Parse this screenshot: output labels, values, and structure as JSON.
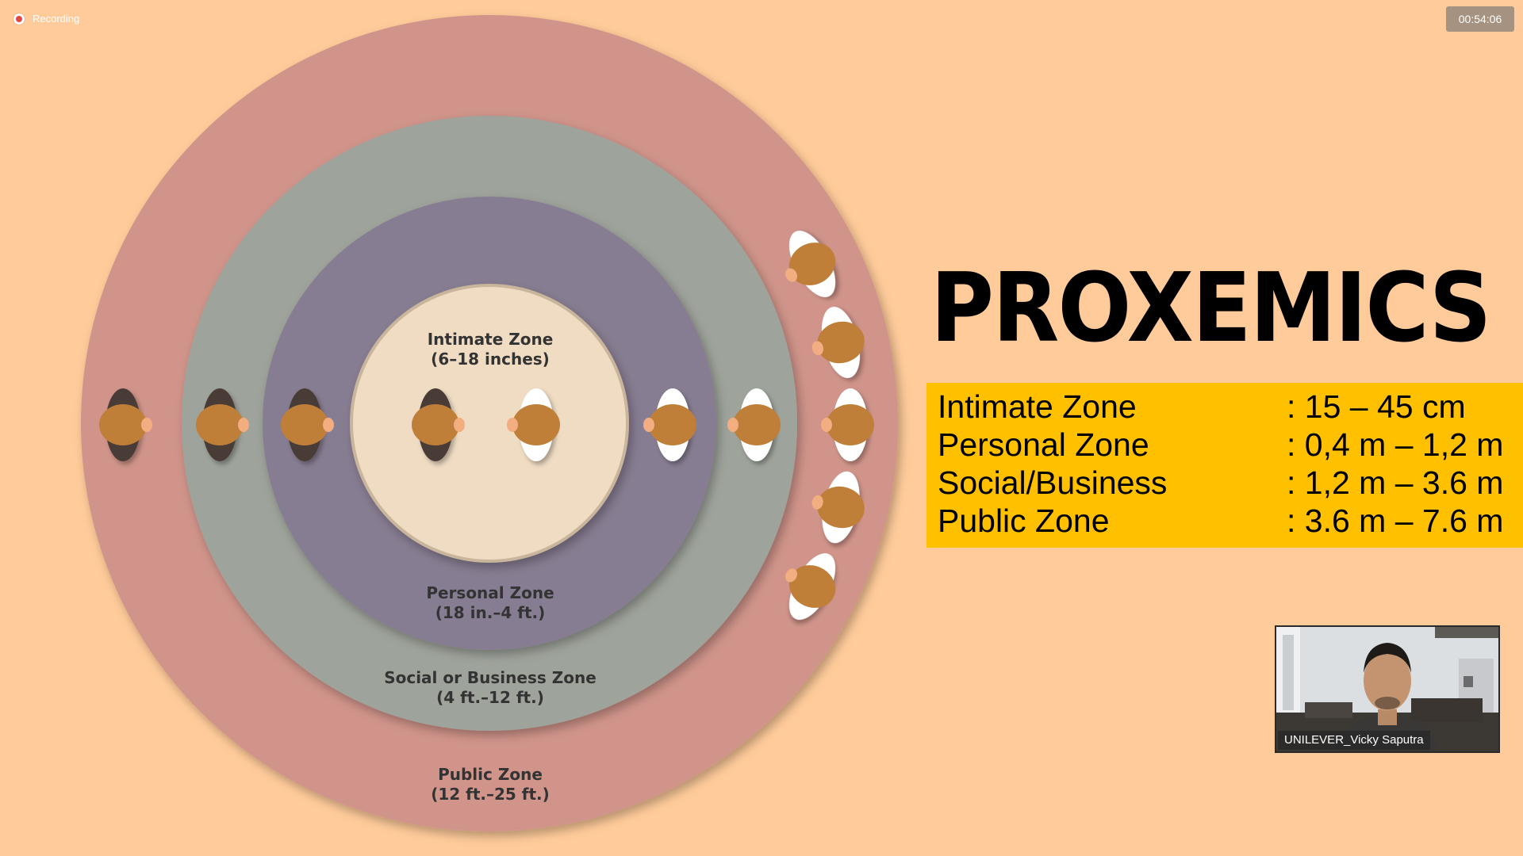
{
  "recording": {
    "label": "Recording",
    "dot_color": "#e04848"
  },
  "timer": {
    "text": "00:54:06"
  },
  "slide": {
    "title": "PROXEMICS",
    "diagram": {
      "zones": [
        {
          "name": "Intimate Zone",
          "range": "(6–18 inches)",
          "color": "#efdcc3"
        },
        {
          "name": "Personal Zone",
          "range": "(18 in.–4 ft.)",
          "color": "#877d92"
        },
        {
          "name": "Social or Business Zone",
          "range": "(4 ft.–12 ft.)",
          "color": "#9ea39b"
        },
        {
          "name": "Public Zone",
          "range": "(12 ft.–25 ft.)",
          "color": "#d0948a"
        }
      ]
    },
    "zone_table": {
      "background": "#ffc000",
      "rows": [
        {
          "name": "Intimate Zone",
          "value": ": 15 – 45 cm"
        },
        {
          "name": "Personal Zone",
          "value": ": 0,4 m – 1,2 m"
        },
        {
          "name": "Social/Business",
          "value": ": 1,2 m – 3.6 m"
        },
        {
          "name": "Public Zone",
          "value": ": 3.6 m – 7.6 m"
        }
      ]
    }
  },
  "video_tile": {
    "participant_name": "UNILEVER_Vicky Saputra"
  },
  "colors": {
    "page_background": "#ffcb9a",
    "title": "#000000"
  }
}
